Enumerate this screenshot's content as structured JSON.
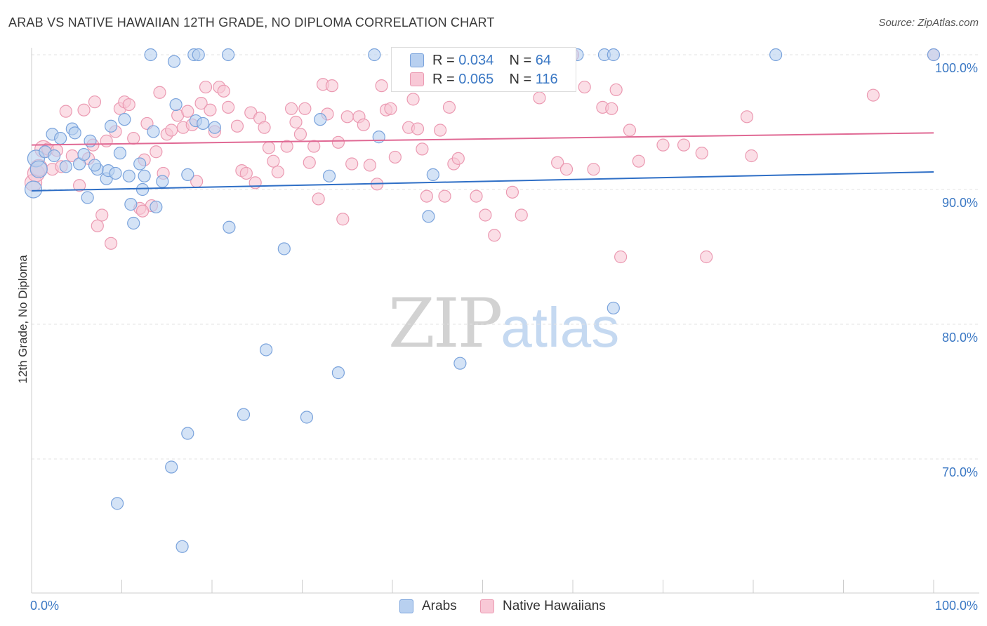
{
  "header": {
    "title": "ARAB VS NATIVE HAWAIIAN 12TH GRADE, NO DIPLOMA CORRELATION CHART",
    "source": "Source: ZipAtlas.com"
  },
  "watermark": {
    "zip": "ZIP",
    "atlas": "atlas"
  },
  "legend_top": {
    "arabs": {
      "r_label": "R = ",
      "r_value": "0.034",
      "n_label": "N = ",
      "n_value": "64"
    },
    "hawaiians": {
      "r_label": "R = ",
      "r_value": "0.065",
      "n_label": "N = ",
      "n_value": "116"
    }
  },
  "legend_bottom": {
    "arabs": "Arabs",
    "hawaiians": "Native Hawaiians"
  },
  "colors": {
    "arabs_fill": "#b8d0f0",
    "arabs_stroke": "#7aa3dc",
    "arabs_line": "#2f6fc6",
    "hawaiians_fill": "#f8c8d6",
    "hawaiians_stroke": "#eb9ab2",
    "hawaiians_line": "#e06994",
    "tick_text": "#3b78c4"
  },
  "chart_data": {
    "type": "scatter",
    "title": "ARAB VS NATIVE HAWAIIAN 12TH GRADE, NO DIPLOMA CORRELATION CHART",
    "xlabel": "",
    "ylabel": "12th Grade, No Diploma",
    "xlim": [
      0,
      100
    ],
    "ylim": [
      60,
      101.5
    ],
    "x_ticks": [
      "0.0%",
      "100.0%"
    ],
    "y_ticks": [
      {
        "value": 100,
        "label": "100.0%"
      },
      {
        "value": 90,
        "label": "90.0%"
      },
      {
        "value": 80,
        "label": "80.0%"
      },
      {
        "value": 70,
        "label": "70.0%"
      }
    ],
    "grid": true,
    "legend_position": "top-center",
    "series": [
      {
        "name": "Arabs",
        "r": 0.034,
        "n": 64,
        "trend": {
          "x": [
            0,
            100
          ],
          "y": [
            89.9,
            91.3
          ]
        },
        "points": [
          [
            0.2,
            90.0
          ],
          [
            0.5,
            92.3
          ],
          [
            0.8,
            91.5
          ],
          [
            1.5,
            92.8
          ],
          [
            2.3,
            94.1
          ],
          [
            2.5,
            92.5
          ],
          [
            3.2,
            93.8
          ],
          [
            3.8,
            91.7
          ],
          [
            4.5,
            94.5
          ],
          [
            4.8,
            94.2
          ],
          [
            5.3,
            91.9
          ],
          [
            5.8,
            92.6
          ],
          [
            6.2,
            89.4
          ],
          [
            6.5,
            93.6
          ],
          [
            7.3,
            91.5
          ],
          [
            8.3,
            90.8
          ],
          [
            8.5,
            91.4
          ],
          [
            8.8,
            94.7
          ],
          [
            9.3,
            91.2
          ],
          [
            9.8,
            92.7
          ],
          [
            10.3,
            95.2
          ],
          [
            10.8,
            91.0
          ],
          [
            11.0,
            88.9
          ],
          [
            11.3,
            87.5
          ],
          [
            12.0,
            91.9
          ],
          [
            12.3,
            90.0
          ],
          [
            12.5,
            91.0
          ],
          [
            13.2,
            100.0
          ],
          [
            13.5,
            94.3
          ],
          [
            13.8,
            88.7
          ],
          [
            14.5,
            90.6
          ],
          [
            15.8,
            99.5
          ],
          [
            16.0,
            96.3
          ],
          [
            17.3,
            91.1
          ],
          [
            18.0,
            100.0
          ],
          [
            18.5,
            100.0
          ],
          [
            18.2,
            95.1
          ],
          [
            19.0,
            94.9
          ],
          [
            20.3,
            94.6
          ],
          [
            21.8,
            100.0
          ],
          [
            21.9,
            87.2
          ],
          [
            28.0,
            85.6
          ],
          [
            32.0,
            95.2
          ],
          [
            33.0,
            91.0
          ],
          [
            38.0,
            100.0
          ],
          [
            38.5,
            93.9
          ],
          [
            44.5,
            91.1
          ],
          [
            44.0,
            88.0
          ],
          [
            60.5,
            100.0
          ],
          [
            63.5,
            100.0
          ],
          [
            64.5,
            100.0
          ],
          [
            82.5,
            100.0
          ],
          [
            100.0,
            100.0
          ],
          [
            9.5,
            66.7
          ],
          [
            16.7,
            63.5
          ],
          [
            15.5,
            69.4
          ],
          [
            17.3,
            71.9
          ],
          [
            23.5,
            73.3
          ],
          [
            26.0,
            78.1
          ],
          [
            30.5,
            73.1
          ],
          [
            34.0,
            76.4
          ],
          [
            47.5,
            77.1
          ],
          [
            64.5,
            81.2
          ],
          [
            7.0,
            91.8
          ]
        ]
      },
      {
        "name": "Native Hawaiians",
        "r": 0.065,
        "n": 116,
        "trend": {
          "x": [
            0,
            100
          ],
          "y": [
            93.3,
            94.2
          ]
        },
        "points": [
          [
            0.2,
            90.5
          ],
          [
            0.5,
            91.2
          ],
          [
            0.8,
            91.6
          ],
          [
            1.3,
            93.0
          ],
          [
            1.8,
            93.0
          ],
          [
            2.3,
            91.5
          ],
          [
            2.8,
            92.9
          ],
          [
            3.3,
            91.7
          ],
          [
            3.8,
            95.8
          ],
          [
            4.5,
            92.5
          ],
          [
            5.3,
            90.3
          ],
          [
            5.8,
            95.9
          ],
          [
            6.3,
            92.3
          ],
          [
            6.8,
            93.3
          ],
          [
            7.0,
            96.5
          ],
          [
            7.3,
            87.3
          ],
          [
            7.8,
            88.1
          ],
          [
            8.3,
            93.6
          ],
          [
            8.8,
            86.0
          ],
          [
            9.3,
            94.3
          ],
          [
            9.8,
            96.0
          ],
          [
            10.3,
            96.5
          ],
          [
            10.8,
            96.3
          ],
          [
            11.3,
            93.8
          ],
          [
            12.0,
            88.6
          ],
          [
            12.5,
            92.2
          ],
          [
            12.8,
            94.9
          ],
          [
            13.3,
            88.8
          ],
          [
            13.8,
            92.8
          ],
          [
            14.2,
            97.2
          ],
          [
            14.6,
            91.2
          ],
          [
            15.0,
            94.1
          ],
          [
            15.5,
            94.4
          ],
          [
            16.2,
            95.5
          ],
          [
            16.8,
            94.6
          ],
          [
            17.3,
            95.8
          ],
          [
            17.8,
            94.8
          ],
          [
            18.3,
            90.6
          ],
          [
            18.8,
            96.4
          ],
          [
            19.3,
            97.6
          ],
          [
            19.8,
            95.9
          ],
          [
            20.3,
            94.3
          ],
          [
            20.8,
            97.6
          ],
          [
            21.3,
            97.3
          ],
          [
            21.8,
            96.1
          ],
          [
            22.8,
            94.7
          ],
          [
            23.3,
            91.4
          ],
          [
            23.8,
            91.2
          ],
          [
            24.3,
            95.7
          ],
          [
            24.8,
            90.5
          ],
          [
            25.3,
            95.3
          ],
          [
            25.8,
            94.6
          ],
          [
            26.3,
            93.1
          ],
          [
            26.8,
            92.1
          ],
          [
            27.3,
            91.3
          ],
          [
            28.3,
            93.2
          ],
          [
            28.8,
            96.0
          ],
          [
            29.3,
            95.0
          ],
          [
            29.8,
            94.1
          ],
          [
            30.3,
            96.0
          ],
          [
            30.8,
            92.0
          ],
          [
            31.3,
            93.2
          ],
          [
            31.8,
            89.3
          ],
          [
            32.3,
            97.8
          ],
          [
            32.8,
            95.6
          ],
          [
            33.3,
            97.7
          ],
          [
            34.0,
            93.5
          ],
          [
            34.5,
            87.8
          ],
          [
            35.0,
            95.4
          ],
          [
            35.5,
            91.9
          ],
          [
            36.3,
            95.4
          ],
          [
            36.8,
            94.8
          ],
          [
            37.5,
            91.8
          ],
          [
            38.3,
            90.4
          ],
          [
            38.8,
            97.7
          ],
          [
            39.3,
            95.9
          ],
          [
            39.8,
            96.0
          ],
          [
            40.3,
            92.4
          ],
          [
            41.3,
            100.0
          ],
          [
            41.8,
            94.6
          ],
          [
            42.3,
            96.7
          ],
          [
            42.8,
            94.5
          ],
          [
            43.3,
            93.0
          ],
          [
            43.8,
            89.5
          ],
          [
            44.3,
            97.8
          ],
          [
            45.3,
            94.4
          ],
          [
            45.8,
            89.5
          ],
          [
            46.3,
            96.1
          ],
          [
            46.8,
            91.9
          ],
          [
            47.3,
            92.3
          ],
          [
            49.3,
            89.5
          ],
          [
            50.3,
            88.1
          ],
          [
            51.3,
            86.6
          ],
          [
            53.3,
            89.8
          ],
          [
            54.3,
            88.1
          ],
          [
            56.3,
            96.8
          ],
          [
            58.3,
            92.0
          ],
          [
            59.3,
            91.5
          ],
          [
            60.0,
            100.0
          ],
          [
            61.3,
            97.6
          ],
          [
            62.3,
            91.5
          ],
          [
            63.3,
            96.1
          ],
          [
            64.3,
            96.0
          ],
          [
            64.8,
            97.4
          ],
          [
            65.3,
            85.0
          ],
          [
            66.3,
            94.4
          ],
          [
            67.3,
            92.1
          ],
          [
            70.0,
            93.3
          ],
          [
            72.3,
            93.3
          ],
          [
            74.3,
            92.7
          ],
          [
            74.8,
            85.0
          ],
          [
            79.3,
            95.4
          ],
          [
            79.8,
            92.5
          ],
          [
            93.3,
            97.0
          ],
          [
            100.0,
            100.0
          ],
          [
            12.3,
            88.4
          ]
        ]
      }
    ]
  }
}
